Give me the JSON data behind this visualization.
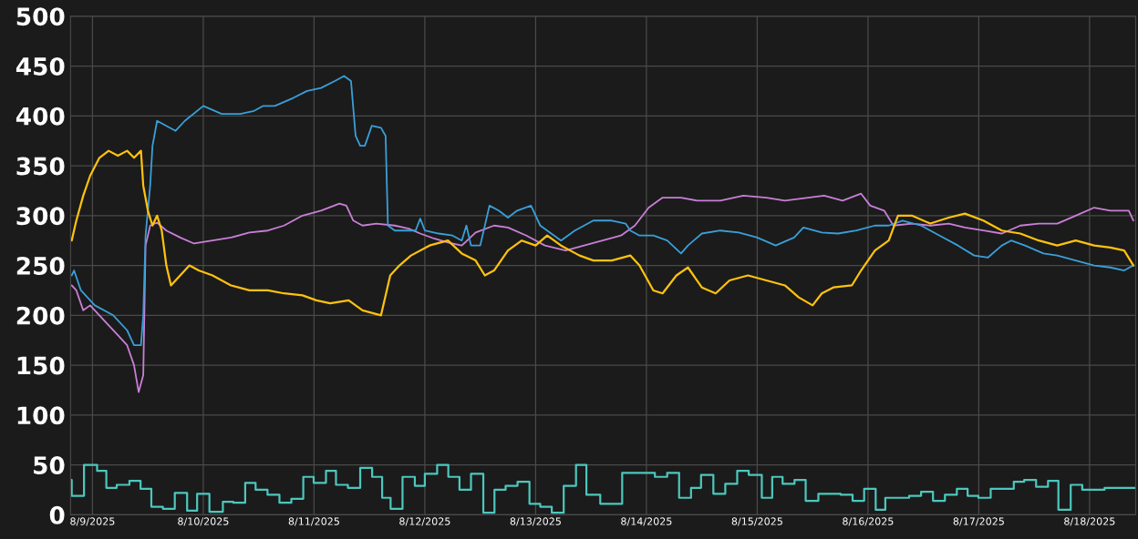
{
  "chart_data": {
    "type": "line",
    "xlim": [
      "2025-08-08T19:15",
      "2025-08-18T10:00"
    ],
    "ylim": [
      0,
      500
    ],
    "yticks": [
      0,
      50,
      100,
      150,
      200,
      250,
      300,
      350,
      400,
      450,
      500
    ],
    "xticks": [
      {
        "value": "2025-08-09",
        "label": "8/9/2025"
      },
      {
        "value": "2025-08-10",
        "label": "8/10/2025"
      },
      {
        "value": "2025-08-11",
        "label": "8/11/2025"
      },
      {
        "value": "2025-08-12",
        "label": "8/12/2025"
      },
      {
        "value": "2025-08-13",
        "label": "8/13/2025"
      },
      {
        "value": "2025-08-14",
        "label": "8/14/2025"
      },
      {
        "value": "2025-08-15",
        "label": "8/15/2025"
      },
      {
        "value": "2025-08-16",
        "label": "8/16/2025"
      },
      {
        "value": "2025-08-17",
        "label": "8/17/2025"
      },
      {
        "value": "2025-08-18",
        "label": "8/18/2025"
      }
    ],
    "grid": true,
    "series": [
      {
        "type": "step",
        "color": "#4cc7bd",
        "x": [
          "2025-08-08T19:20",
          "2025-08-08T19:30",
          "2025-08-08T22:10",
          "2025-08-09T01:00",
          "2025-08-09T03:00",
          "2025-08-09T05:15",
          "2025-08-09T08:00",
          "2025-08-09T10:25",
          "2025-08-09T12:45",
          "2025-08-09T15:15",
          "2025-08-09T17:50",
          "2025-08-09T20:30",
          "2025-08-09T22:40",
          "2025-08-10T01:20",
          "2025-08-10T04:15",
          "2025-08-10T06:30",
          "2025-08-10T09:05",
          "2025-08-10T11:20",
          "2025-08-10T13:55",
          "2025-08-10T16:30",
          "2025-08-10T19:05",
          "2025-08-10T21:40",
          "2025-08-10T23:55",
          "2025-08-11T02:35",
          "2025-08-11T04:45",
          "2025-08-11T07:20",
          "2025-08-11T10:00",
          "2025-08-11T12:35",
          "2025-08-11T14:45",
          "2025-08-11T16:35",
          "2025-08-11T19:10",
          "2025-08-11T21:50",
          "2025-08-12T00:00",
          "2025-08-12T02:40",
          "2025-08-12T05:05",
          "2025-08-12T07:30",
          "2025-08-12T10:00",
          "2025-08-12T12:40",
          "2025-08-12T15:05",
          "2025-08-12T17:30",
          "2025-08-12T20:05",
          "2025-08-12T22:40",
          "2025-08-13T01:00",
          "2025-08-13T03:30",
          "2025-08-13T06:05",
          "2025-08-13T08:45",
          "2025-08-13T11:00",
          "2025-08-13T14:00",
          "2025-08-13T18:45",
          "2025-08-14T01:50",
          "2025-08-14T04:30",
          "2025-08-14T07:05",
          "2025-08-14T09:40",
          "2025-08-14T11:50",
          "2025-08-14T14:30",
          "2025-08-14T17:05",
          "2025-08-14T19:40",
          "2025-08-14T22:10",
          "2025-08-15T01:00",
          "2025-08-15T03:15",
          "2025-08-15T05:30",
          "2025-08-15T08:05",
          "2025-08-15T10:30",
          "2025-08-15T13:15",
          "2025-08-15T18:05",
          "2025-08-15T20:40",
          "2025-08-15T23:10",
          "2025-08-16T01:40",
          "2025-08-16T03:45",
          "2025-08-16T08:55",
          "2025-08-16T11:30",
          "2025-08-16T14:05",
          "2025-08-16T16:40",
          "2025-08-16T19:15",
          "2025-08-16T21:35",
          "2025-08-16T23:55",
          "2025-08-17T02:35",
          "2025-08-17T07:35",
          "2025-08-17T09:50",
          "2025-08-17T12:25",
          "2025-08-17T15:00",
          "2025-08-17T17:15",
          "2025-08-17T19:55",
          "2025-08-17T22:25",
          "2025-08-18T03:15",
          "2025-08-18T10:00"
        ],
        "values": [
          35,
          19,
          50,
          44,
          27,
          30,
          34,
          26,
          8,
          6,
          22,
          4,
          21,
          3,
          13,
          12,
          32,
          25,
          20,
          12,
          16,
          38,
          32,
          44,
          30,
          27,
          47,
          38,
          17,
          6,
          38,
          29,
          41,
          50,
          38,
          25,
          41,
          2,
          25,
          29,
          33,
          11,
          8,
          2,
          29,
          50,
          20,
          11,
          42,
          38,
          42,
          17,
          27,
          40,
          21,
          31,
          44,
          40,
          17,
          38,
          31,
          35,
          14,
          21,
          20,
          14,
          26,
          5,
          17,
          19,
          23,
          14,
          20,
          26,
          19,
          17,
          26,
          33,
          35,
          28,
          34,
          5,
          30,
          25,
          27,
          27
        ]
      },
      {
        "color": "#c97fd6",
        "x": [
          "2025-08-08T19:30",
          "2025-08-08T20:30",
          "2025-08-08T22:00",
          "2025-08-08T23:30",
          "2025-08-09T02:30",
          "2025-08-09T05:30",
          "2025-08-09T07:30",
          "2025-08-09T09:00",
          "2025-08-09T10:00",
          "2025-08-09T11:00",
          "2025-08-09T11:30",
          "2025-08-09T12:30",
          "2025-08-09T14:00",
          "2025-08-09T16:00",
          "2025-08-09T19:00",
          "2025-08-09T22:00",
          "2025-08-10T02:00",
          "2025-08-10T06:00",
          "2025-08-10T10:00",
          "2025-08-10T14:00",
          "2025-08-10T17:30",
          "2025-08-10T21:30",
          "2025-08-11T01:30",
          "2025-08-11T05:30",
          "2025-08-11T07:00",
          "2025-08-11T08:30",
          "2025-08-11T10:30",
          "2025-08-11T13:30",
          "2025-08-11T17:30",
          "2025-08-11T20:30",
          "2025-08-11T23:00",
          "2025-08-12T02:00",
          "2025-08-12T05:00",
          "2025-08-12T08:00",
          "2025-08-12T11:00",
          "2025-08-12T15:00",
          "2025-08-12T18:00",
          "2025-08-12T22:00",
          "2025-08-13T02:00",
          "2025-08-13T06:30",
          "2025-08-13T10:30",
          "2025-08-13T14:30",
          "2025-08-13T18:30",
          "2025-08-13T21:30",
          "2025-08-14T00:30",
          "2025-08-14T03:30",
          "2025-08-14T07:30",
          "2025-08-14T11:00",
          "2025-08-14T16:00",
          "2025-08-14T21:00",
          "2025-08-15T02:00",
          "2025-08-15T06:00",
          "2025-08-15T11:00",
          "2025-08-15T14:30",
          "2025-08-15T18:30",
          "2025-08-15T22:30",
          "2025-08-16T00:30",
          "2025-08-16T03:30",
          "2025-08-16T05:30",
          "2025-08-16T09:30",
          "2025-08-16T13:30",
          "2025-08-16T17:30",
          "2025-08-16T21:00",
          "2025-08-17T01:00",
          "2025-08-17T05:00",
          "2025-08-17T09:00",
          "2025-08-17T13:00",
          "2025-08-17T17:00",
          "2025-08-17T21:00",
          "2025-08-18T01:00",
          "2025-08-18T04:30",
          "2025-08-18T08:30",
          "2025-08-18T09:30"
        ],
        "values": [
          230,
          225,
          205,
          210,
          195,
          180,
          170,
          150,
          123,
          140,
          270,
          290,
          293,
          285,
          278,
          272,
          275,
          278,
          283,
          285,
          290,
          300,
          305,
          312,
          310,
          295,
          290,
          292,
          290,
          287,
          282,
          277,
          273,
          270,
          283,
          290,
          288,
          280,
          270,
          265,
          270,
          275,
          280,
          290,
          308,
          318,
          318,
          315,
          315,
          320,
          318,
          315,
          318,
          320,
          315,
          322,
          310,
          305,
          290,
          292,
          290,
          292,
          288,
          285,
          282,
          290,
          292,
          292,
          300,
          308,
          305,
          305,
          295
        ]
      },
      {
        "color": "#3a9fd8",
        "x": [
          "2025-08-08T19:30",
          "2025-08-08T20:00",
          "2025-08-08T21:30",
          "2025-08-09T00:30",
          "2025-08-09T04:30",
          "2025-08-09T07:30",
          "2025-08-09T09:00",
          "2025-08-09T10:30",
          "2025-08-09T11:00",
          "2025-08-09T11:30",
          "2025-08-09T12:30",
          "2025-08-09T13:00",
          "2025-08-09T14:00",
          "2025-08-09T16:00",
          "2025-08-09T18:00",
          "2025-08-09T20:00",
          "2025-08-10T00:00",
          "2025-08-10T04:00",
          "2025-08-10T08:00",
          "2025-08-10T11:00",
          "2025-08-10T13:00",
          "2025-08-10T15:30",
          "2025-08-10T19:30",
          "2025-08-10T22:30",
          "2025-08-11T01:30",
          "2025-08-11T04:30",
          "2025-08-11T06:30",
          "2025-08-11T08:00",
          "2025-08-11T09:00",
          "2025-08-11T10:00",
          "2025-08-11T11:00",
          "2025-08-11T12:30",
          "2025-08-11T14:30",
          "2025-08-11T15:30",
          "2025-08-11T16:00",
          "2025-08-11T17:30",
          "2025-08-11T19:30",
          "2025-08-11T22:00",
          "2025-08-11T23:00",
          "2025-08-12T00:00",
          "2025-08-12T03:00",
          "2025-08-12T06:00",
          "2025-08-12T08:00",
          "2025-08-12T09:00",
          "2025-08-12T10:00",
          "2025-08-12T12:00",
          "2025-08-12T14:00",
          "2025-08-12T16:00",
          "2025-08-12T18:00",
          "2025-08-12T20:00",
          "2025-08-12T23:00",
          "2025-08-13T01:00",
          "2025-08-13T02:30",
          "2025-08-13T05:30",
          "2025-08-13T08:30",
          "2025-08-13T12:30",
          "2025-08-13T16:30",
          "2025-08-13T19:30",
          "2025-08-13T20:30",
          "2025-08-13T22:30",
          "2025-08-14T01:30",
          "2025-08-14T04:30",
          "2025-08-14T07:30",
          "2025-08-14T09:00",
          "2025-08-14T12:00",
          "2025-08-14T16:00",
          "2025-08-14T20:00",
          "2025-08-15T00:00",
          "2025-08-15T04:00",
          "2025-08-15T08:00",
          "2025-08-15T10:00",
          "2025-08-15T14:00",
          "2025-08-15T17:30",
          "2025-08-15T21:30",
          "2025-08-16T01:30",
          "2025-08-16T04:30",
          "2025-08-16T07:30",
          "2025-08-16T11:30",
          "2025-08-16T15:30",
          "2025-08-16T19:30",
          "2025-08-16T23:00",
          "2025-08-17T02:00",
          "2025-08-17T05:00",
          "2025-08-17T07:00",
          "2025-08-17T10:00",
          "2025-08-17T14:00",
          "2025-08-17T17:00",
          "2025-08-17T21:00",
          "2025-08-18T01:00",
          "2025-08-18T04:30",
          "2025-08-18T07:30",
          "2025-08-18T09:30"
        ],
        "values": [
          240,
          245,
          225,
          210,
          200,
          185,
          170,
          170,
          200,
          280,
          330,
          370,
          395,
          390,
          385,
          395,
          410,
          402,
          402,
          405,
          410,
          410,
          418,
          425,
          428,
          435,
          440,
          435,
          380,
          370,
          370,
          390,
          388,
          380,
          290,
          285,
          285,
          285,
          297,
          285,
          282,
          280,
          275,
          290,
          270,
          270,
          310,
          305,
          298,
          305,
          310,
          290,
          285,
          275,
          285,
          295,
          295,
          292,
          285,
          280,
          280,
          275,
          262,
          270,
          282,
          285,
          283,
          278,
          270,
          278,
          288,
          283,
          282,
          285,
          290,
          290,
          295,
          290,
          280,
          270,
          260,
          258,
          270,
          275,
          270,
          262,
          260,
          255,
          250,
          248,
          245,
          250
        ]
      },
      {
        "color": "#ffc20e",
        "x": [
          "2025-08-08T19:30",
          "2025-08-08T20:30",
          "2025-08-08T22:00",
          "2025-08-08T23:30",
          "2025-08-09T01:30",
          "2025-08-09T03:30",
          "2025-08-09T05:30",
          "2025-08-09T07:30",
          "2025-08-09T09:00",
          "2025-08-09T10:30",
          "2025-08-09T11:00",
          "2025-08-09T12:00",
          "2025-08-09T13:00",
          "2025-08-09T14:00",
          "2025-08-09T15:00",
          "2025-08-09T16:00",
          "2025-08-09T17:00",
          "2025-08-09T19:00",
          "2025-08-09T21:00",
          "2025-08-09T23:00",
          "2025-08-10T02:00",
          "2025-08-10T06:00",
          "2025-08-10T10:00",
          "2025-08-10T14:00",
          "2025-08-10T17:30",
          "2025-08-10T21:30",
          "2025-08-11T00:30",
          "2025-08-11T03:30",
          "2025-08-11T07:30",
          "2025-08-11T10:30",
          "2025-08-11T14:30",
          "2025-08-11T15:30",
          "2025-08-11T16:30",
          "2025-08-11T18:30",
          "2025-08-11T21:00",
          "2025-08-12T01:00",
          "2025-08-12T05:00",
          "2025-08-12T08:00",
          "2025-08-12T11:00",
          "2025-08-12T13:00",
          "2025-08-12T15:00",
          "2025-08-12T18:00",
          "2025-08-12T21:00",
          "2025-08-13T00:00",
          "2025-08-13T02:30",
          "2025-08-13T05:30",
          "2025-08-13T09:30",
          "2025-08-13T12:30",
          "2025-08-13T16:30",
          "2025-08-13T20:30",
          "2025-08-13T22:30",
          "2025-08-14T01:30",
          "2025-08-14T03:30",
          "2025-08-14T06:30",
          "2025-08-14T09:00",
          "2025-08-14T12:00",
          "2025-08-14T15:00",
          "2025-08-14T18:00",
          "2025-08-14T22:00",
          "2025-08-15T02:00",
          "2025-08-15T06:00",
          "2025-08-15T09:00",
          "2025-08-15T12:00",
          "2025-08-15T14:00",
          "2025-08-15T16:30",
          "2025-08-15T20:30",
          "2025-08-15T22:30",
          "2025-08-16T01:30",
          "2025-08-16T04:30",
          "2025-08-16T06:30",
          "2025-08-16T09:30",
          "2025-08-16T13:30",
          "2025-08-16T17:30",
          "2025-08-16T21:00",
          "2025-08-17T01:00",
          "2025-08-17T05:00",
          "2025-08-17T09:00",
          "2025-08-17T13:00",
          "2025-08-17T17:00",
          "2025-08-17T21:00",
          "2025-08-18T01:00",
          "2025-08-18T04:30",
          "2025-08-18T07:30",
          "2025-08-18T09:30"
        ],
        "values": [
          275,
          295,
          320,
          340,
          358,
          365,
          360,
          365,
          358,
          365,
          330,
          305,
          290,
          300,
          285,
          250,
          230,
          240,
          250,
          245,
          240,
          230,
          225,
          225,
          222,
          220,
          215,
          212,
          215,
          205,
          200,
          220,
          240,
          250,
          260,
          270,
          275,
          262,
          255,
          240,
          245,
          265,
          275,
          270,
          280,
          270,
          260,
          255,
          255,
          260,
          250,
          225,
          222,
          240,
          248,
          228,
          222,
          235,
          240,
          235,
          230,
          218,
          210,
          222,
          228,
          230,
          245,
          265,
          275,
          300,
          300,
          292,
          298,
          302,
          295,
          285,
          282,
          275,
          270,
          275,
          270,
          268,
          265,
          250
        ]
      }
    ]
  }
}
